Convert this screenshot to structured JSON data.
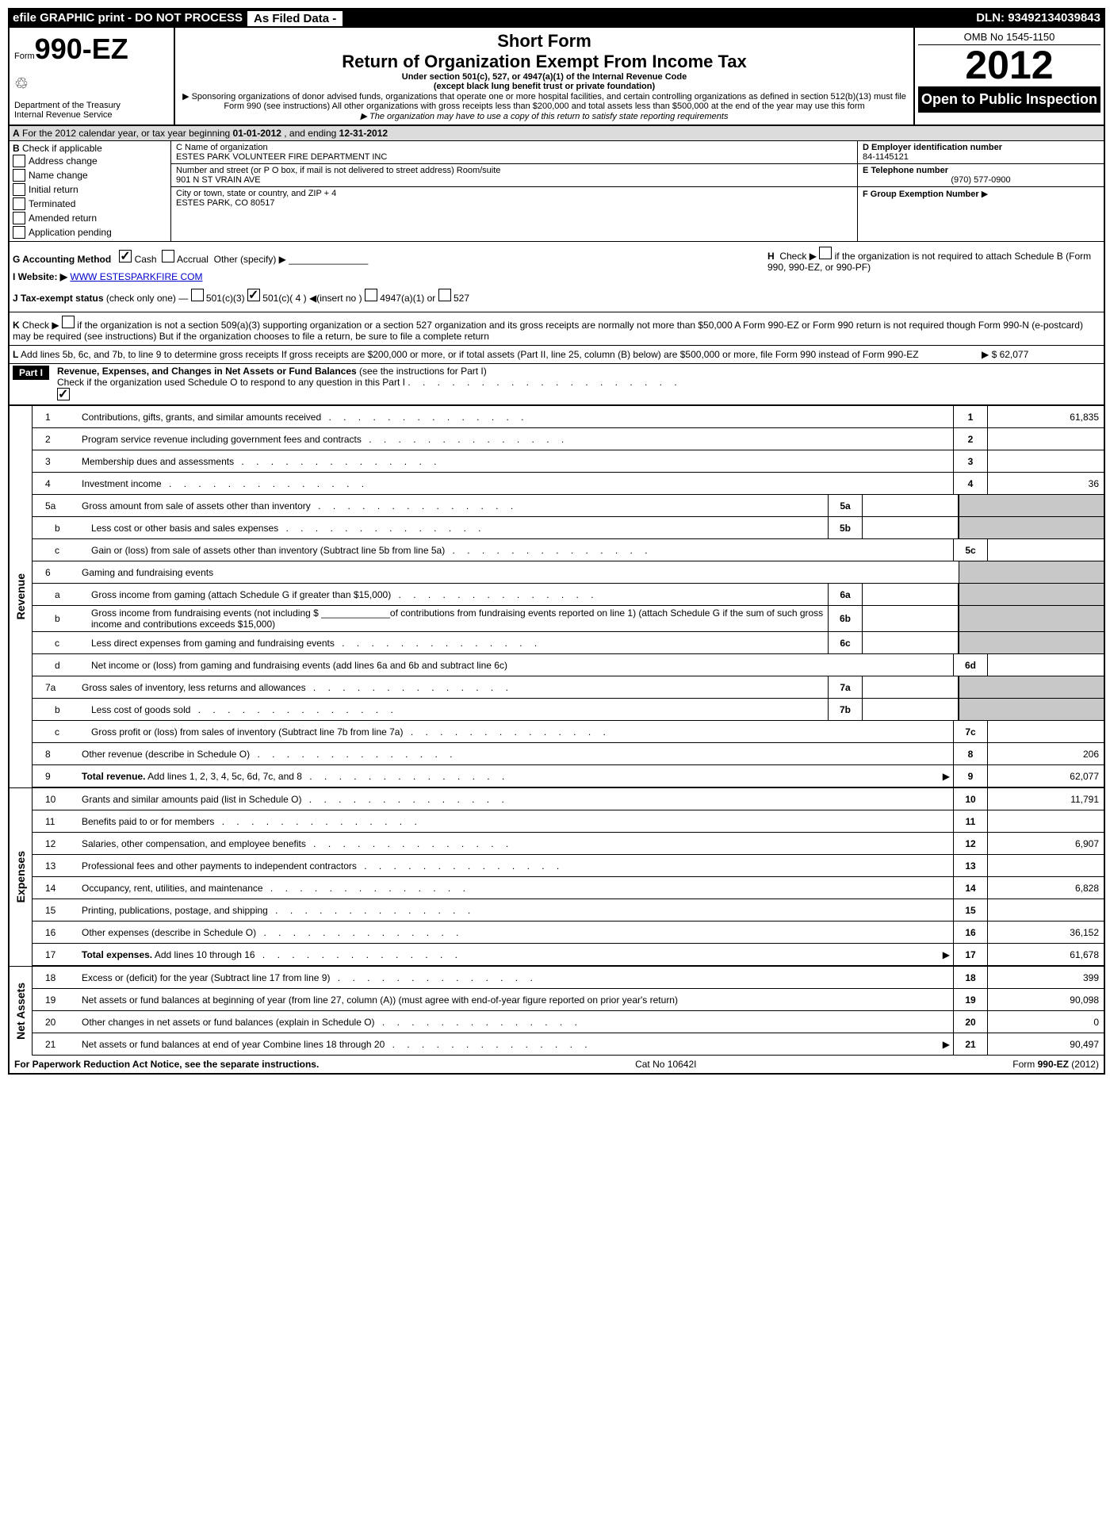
{
  "efile": {
    "prefix": "efile GRAPHIC print - DO NOT PROCESS",
    "asfiled": "As Filed Data -",
    "dln_label": "DLN:",
    "dln": "93492134039843"
  },
  "header": {
    "form_word": "Form",
    "form_no": "990-EZ",
    "short_form": "Short Form",
    "title": "Return of Organization Exempt From Income Tax",
    "sub1": "Under section 501(c), 527, or 4947(a)(1) of the Internal Revenue Code",
    "sub2": "(except black lung benefit trust or private foundation)",
    "sub3": "▶ Sponsoring organizations of donor advised funds, organizations that operate one or more hospital facilities, and certain controlling organizations as defined in section 512(b)(13) must file Form 990 (see instructions) All other organizations with gross receipts less than $200,000 and total assets less than $500,000 at the end of the year may use this form",
    "sub4": "▶ The organization may have to use a copy of this return to satisfy state reporting requirements",
    "dept1": "Department of the Treasury",
    "dept2": "Internal Revenue Service",
    "omb": "OMB No 1545-1150",
    "year": "2012",
    "open": "Open to Public Inspection"
  },
  "section_a": {
    "text_a": "A",
    "text": "For the 2012 calendar year, or tax year beginning",
    "begin": "01-01-2012",
    "end_label": ", and ending",
    "end": "12-31-2012"
  },
  "col_b": {
    "label": "B",
    "check_label": "Check if applicable",
    "items": [
      "Address change",
      "Name change",
      "Initial return",
      "Terminated",
      "Amended return",
      "Application pending"
    ]
  },
  "col_c": {
    "c_label": "C Name of organization",
    "c_val": "ESTES PARK VOLUNTEER FIRE DEPARTMENT INC",
    "street_label": "Number and street (or P O box, if mail is not delivered to street address) Room/suite",
    "street_val": "901 N ST VRAIN AVE",
    "city_label": "City or town, state or country, and ZIP + 4",
    "city_val": "ESTES PARK, CO  80517"
  },
  "col_d": {
    "d_label": "D Employer identification number",
    "d_val": "84-1145121",
    "e_label": "E Telephone number",
    "e_val": "(970) 577-0900",
    "f_label": "F Group Exemption Number",
    "f_arrow": "▶"
  },
  "g": {
    "label": "G Accounting Method",
    "cash": "Cash",
    "accrual": "Accrual",
    "other": "Other (specify) ▶"
  },
  "h": {
    "label_h": "H",
    "text": "Check ▶",
    "text2": "if the organization is not required to attach Schedule B (Form 990, 990-EZ, or 990-PF)"
  },
  "i": {
    "label": "I Website: ▶",
    "val": "WWW ESTESPARKFIRE COM"
  },
  "j": {
    "label": "J Tax-exempt status",
    "text": "(check only one) —",
    "o1": "501(c)(3)",
    "o2": "501(c)( 4 ) ◀(insert no )",
    "o3": "4947(a)(1) or",
    "o4": "527"
  },
  "k": {
    "label": "K",
    "text": "Check ▶",
    "body": "if the organization is not a section 509(a)(3) supporting organization or a section 527 organization and its gross receipts are normally not more than $50,000  A Form 990-EZ or Form 990 return is not required though Form 990-N (e-postcard) may be required (see instructions)  But if the organization chooses to file a return, be sure to file a complete return"
  },
  "l": {
    "label": "L",
    "text": "Add lines 5b, 6c, and 7b, to line 9 to determine gross receipts  If gross receipts are $200,000 or more, or if total assets (Part II, line 25, column (B) below) are $500,000 or more, file Form 990 instead of Form 990-EZ",
    "val": "▶ $ 62,077"
  },
  "part1": {
    "label": "Part I",
    "title": "Revenue, Expenses, and Changes in Net Assets or Fund Balances",
    "sub": "(see the instructions for Part I)",
    "check_text": "Check if the organization used Schedule O to respond to any question in this Part I"
  },
  "sections": {
    "revenue": "Revenue",
    "expenses": "Expenses",
    "netassets": "Net Assets"
  },
  "lines": {
    "l1": {
      "n": "1",
      "d": "Contributions, gifts, grants, and similar amounts received",
      "r": "1",
      "v": "61,835"
    },
    "l2": {
      "n": "2",
      "d": "Program service revenue including government fees and contracts",
      "r": "2",
      "v": ""
    },
    "l3": {
      "n": "3",
      "d": "Membership dues and assessments",
      "r": "3",
      "v": ""
    },
    "l4": {
      "n": "4",
      "d": "Investment income",
      "r": "4",
      "v": "36"
    },
    "l5a": {
      "n": "5a",
      "d": "Gross amount from sale of assets other than inventory",
      "m": "5a"
    },
    "l5b": {
      "n": "b",
      "d": "Less  cost or other basis and sales expenses",
      "m": "5b"
    },
    "l5c": {
      "n": "c",
      "d": "Gain or (loss) from sale of assets other than inventory (Subtract line 5b from line 5a)",
      "r": "5c",
      "v": ""
    },
    "l6": {
      "n": "6",
      "d": "Gaming and fundraising events"
    },
    "l6a": {
      "n": "a",
      "d": "Gross income from gaming (attach Schedule G if greater than $15,000)",
      "m": "6a"
    },
    "l6b": {
      "n": "b",
      "d": "Gross income from fundraising events (not including $ _____________of contributions from fundraising events reported on line 1) (attach Schedule G if the sum of such gross income and contributions exceeds $15,000)",
      "m": "6b"
    },
    "l6c": {
      "n": "c",
      "d": "Less  direct expenses from gaming and fundraising events",
      "m": "6c"
    },
    "l6d": {
      "n": "d",
      "d": "Net income or (loss) from gaming and fundraising events (add lines 6a and 6b and subtract line 6c)",
      "r": "6d",
      "v": ""
    },
    "l7a": {
      "n": "7a",
      "d": "Gross sales of inventory, less returns and allowances",
      "m": "7a"
    },
    "l7b": {
      "n": "b",
      "d": "Less  cost of goods sold",
      "m": "7b"
    },
    "l7c": {
      "n": "c",
      "d": "Gross profit or (loss) from sales of inventory (Subtract line 7b from line 7a)",
      "r": "7c",
      "v": ""
    },
    "l8": {
      "n": "8",
      "d": "Other revenue (describe in Schedule O)",
      "r": "8",
      "v": "206"
    },
    "l9": {
      "n": "9",
      "d": "Total revenue. Add lines 1, 2, 3, 4, 5c, 6d, 7c, and 8",
      "r": "9",
      "v": "62,077",
      "bold": true,
      "arrow": true
    },
    "l10": {
      "n": "10",
      "d": "Grants and similar amounts paid (list in Schedule O)",
      "r": "10",
      "v": "11,791"
    },
    "l11": {
      "n": "11",
      "d": "Benefits paid to or for members",
      "r": "11",
      "v": ""
    },
    "l12": {
      "n": "12",
      "d": "Salaries, other compensation, and employee benefits",
      "r": "12",
      "v": "6,907"
    },
    "l13": {
      "n": "13",
      "d": "Professional fees and other payments to independent contractors",
      "r": "13",
      "v": ""
    },
    "l14": {
      "n": "14",
      "d": "Occupancy, rent, utilities, and maintenance",
      "r": "14",
      "v": "6,828"
    },
    "l15": {
      "n": "15",
      "d": "Printing, publications, postage, and shipping",
      "r": "15",
      "v": ""
    },
    "l16": {
      "n": "16",
      "d": "Other expenses (describe in Schedule O)",
      "r": "16",
      "v": "36,152"
    },
    "l17": {
      "n": "17",
      "d": "Total expenses. Add lines 10 through 16",
      "r": "17",
      "v": "61,678",
      "bold": true,
      "arrow": true
    },
    "l18": {
      "n": "18",
      "d": "Excess or (deficit) for the year (Subtract line 17 from line 9)",
      "r": "18",
      "v": "399"
    },
    "l19": {
      "n": "19",
      "d": "Net assets or fund balances at beginning of year (from line 27, column (A)) (must agree with end-of-year figure reported on prior year's return)",
      "r": "19",
      "v": "90,098"
    },
    "l20": {
      "n": "20",
      "d": "Other changes in net assets or fund balances (explain in Schedule O)",
      "r": "20",
      "v": "0"
    },
    "l21": {
      "n": "21",
      "d": "Net assets or fund balances at end of year  Combine lines 18 through 20",
      "r": "21",
      "v": "90,497",
      "arrow": true
    }
  },
  "footer": {
    "left": "For Paperwork Reduction Act Notice, see the separate instructions.",
    "mid": "Cat No 10642I",
    "right": "Form 990-EZ (2012)"
  }
}
